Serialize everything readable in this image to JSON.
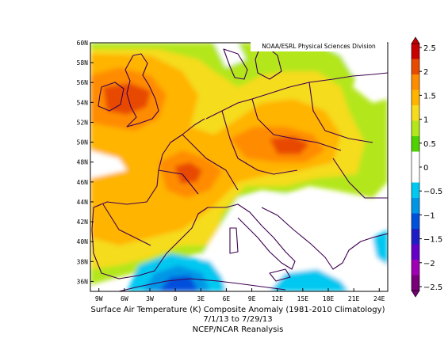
{
  "credit": "NOAA/ESRL Physical Sciences Division",
  "caption_line1": "Surface Air Temperature (K) Composite Anomaly (1981-2010 Climatology)",
  "caption_line2": "7/1/13  to 7/29/13",
  "caption_line3": "NCEP/NCAR Reanalysis",
  "lat_labels": [
    "60N",
    "58N",
    "56N",
    "54N",
    "52N",
    "50N",
    "48N",
    "46N",
    "44N",
    "42N",
    "40N",
    "38N",
    "36N"
  ],
  "lon_labels": [
    "9W",
    "6W",
    "3W",
    "0",
    "3E",
    "6E",
    "9E",
    "12E",
    "15E",
    "18E",
    "21E",
    "24E"
  ],
  "colorbar": {
    "tick_labels": [
      "2.5",
      "2",
      "1.5",
      "1",
      "0.5",
      "0",
      "−0.5",
      "−1",
      "−1.5",
      "−2",
      "−2.5"
    ],
    "colors": [
      "#c80000",
      "#e84a00",
      "#ff8c00",
      "#ffb400",
      "#f5dc1e",
      "#b4e61e",
      "#50d200",
      "#ffffff",
      "#ffffff",
      "#00c8f0",
      "#0096e6",
      "#0050dc",
      "#1e1ec8",
      "#6400c8",
      "#a000b4",
      "#780078"
    ]
  },
  "map": {
    "lon_range": [
      -10,
      25
    ],
    "lat_range": [
      35,
      60
    ],
    "projection": "equirectangular",
    "coastline_color": "#3c0050"
  }
}
